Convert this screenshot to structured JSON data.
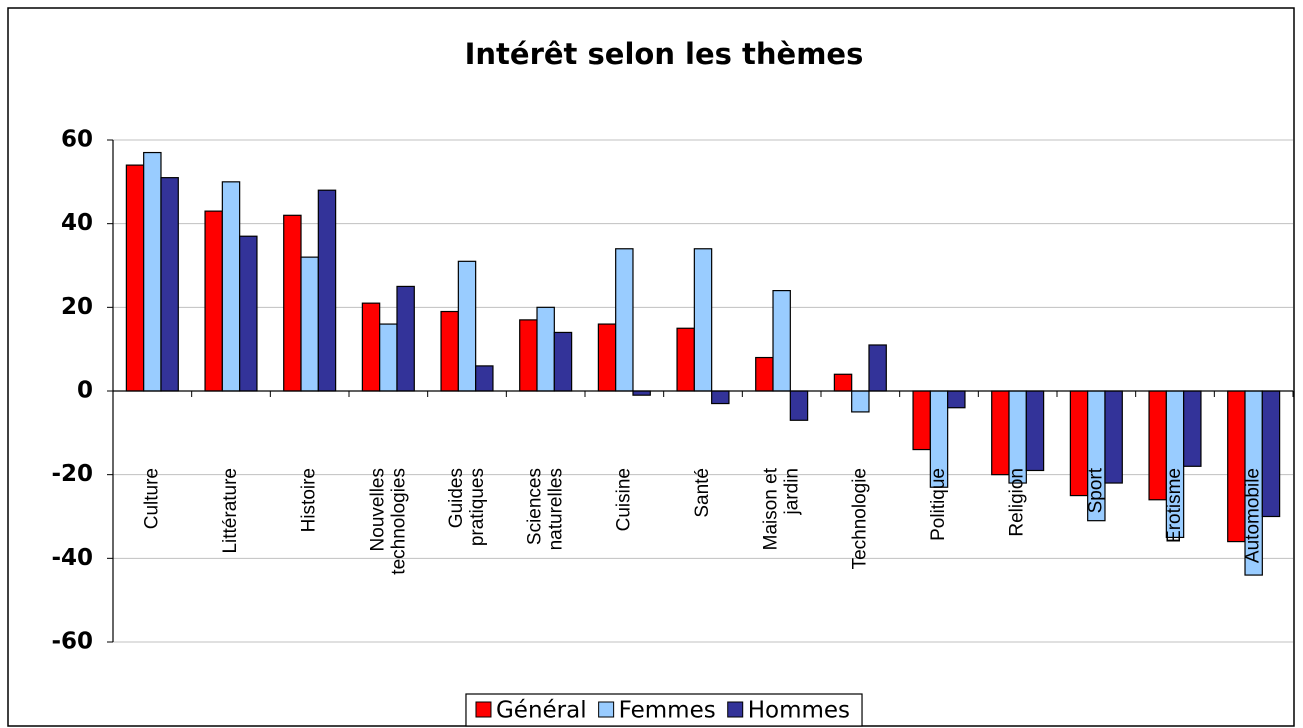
{
  "chart_data": {
    "type": "bar",
    "title": "Intérêt selon les thèmes",
    "categories": [
      "Culture",
      "Littérature",
      "Histoire",
      "Nouvelles technologies",
      "Guides pratiques",
      "Sciences naturelles",
      "Cuisine",
      "Santé",
      "Maison et jardin",
      "Technologie",
      "Politique",
      "Religion",
      "Sport",
      "Erotisme",
      "Automobile"
    ],
    "series": [
      {
        "name": "Général",
        "color": "#ff0000",
        "values": [
          54,
          43,
          42,
          21,
          19,
          17,
          16,
          15,
          8,
          4,
          -14,
          -20,
          -25,
          -26,
          -36
        ]
      },
      {
        "name": "Femmes",
        "color": "#99ccff",
        "values": [
          57,
          50,
          32,
          16,
          31,
          20,
          34,
          34,
          24,
          -5,
          -23,
          -22,
          -31,
          -35,
          -44
        ]
      },
      {
        "name": "Hommes",
        "color": "#333399",
        "values": [
          51,
          37,
          48,
          25,
          6,
          14,
          -1,
          -3,
          -7,
          11,
          -4,
          -19,
          -22,
          -18,
          -30
        ]
      }
    ],
    "ylim": [
      -60,
      60
    ],
    "yticks": [
      -60,
      -40,
      -20,
      0,
      20,
      40,
      60
    ],
    "grid": true,
    "legend": "bottom"
  }
}
